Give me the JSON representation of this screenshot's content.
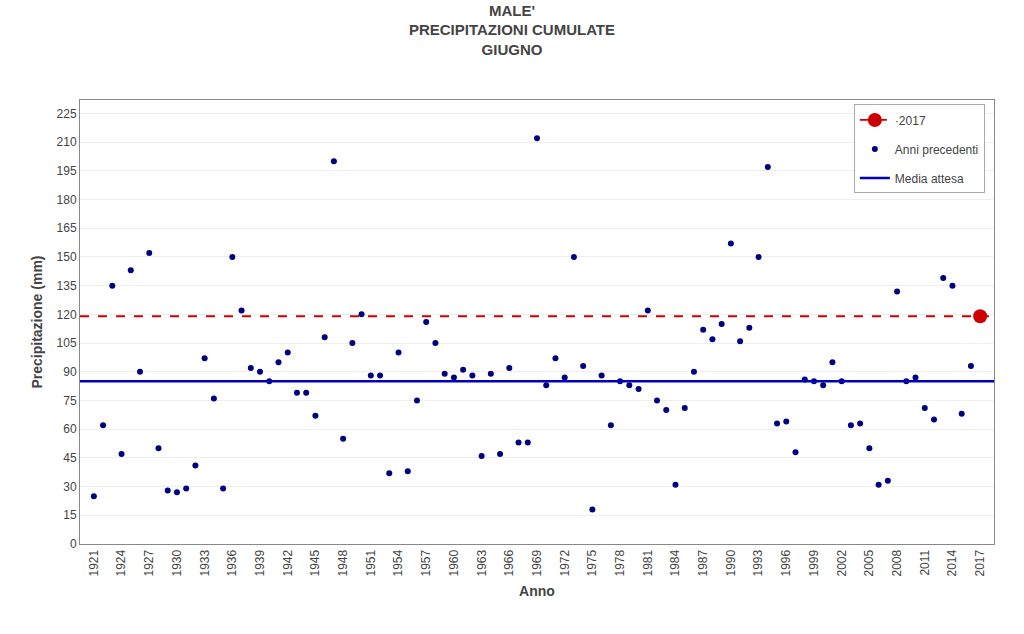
{
  "chart_data": {
    "type": "scatter",
    "title": "MALE'\nPRECIPITAZIONI CUMULATE\nGIUGNO",
    "xlabel": "Anno",
    "ylabel": "Precipitazione (mm)",
    "series": [
      {
        "name": "·2017",
        "type": "scatter",
        "color": "#cc0000",
        "marker": "circle",
        "line_style": "dashed",
        "x": [
          2017
        ],
        "values": [
          119
        ]
      },
      {
        "name": "Anni precedenti",
        "type": "scatter",
        "color": "#000080",
        "marker": "circle",
        "x": [
          1921,
          1922,
          1923,
          1924,
          1925,
          1926,
          1927,
          1928,
          1929,
          1930,
          1931,
          1932,
          1933,
          1934,
          1935,
          1936,
          1937,
          1938,
          1939,
          1940,
          1941,
          1942,
          1943,
          1944,
          1945,
          1946,
          1947,
          1948,
          1949,
          1950,
          1951,
          1952,
          1953,
          1954,
          1955,
          1956,
          1957,
          1958,
          1959,
          1960,
          1961,
          1962,
          1963,
          1964,
          1965,
          1966,
          1967,
          1968,
          1969,
          1970,
          1971,
          1972,
          1973,
          1974,
          1975,
          1976,
          1977,
          1978,
          1979,
          1980,
          1981,
          1982,
          1983,
          1984,
          1985,
          1986,
          1987,
          1988,
          1989,
          1990,
          1991,
          1992,
          1993,
          1994,
          1995,
          1996,
          1997,
          1998,
          1999,
          2000,
          2001,
          2002,
          2003,
          2004,
          2005,
          2006,
          2007,
          2008,
          2009,
          2010,
          2011,
          2012,
          2013,
          2014,
          2015,
          2016
        ],
        "values": [
          25,
          62,
          135,
          47,
          143,
          90,
          152,
          50,
          28,
          27,
          29,
          41,
          97,
          76,
          29,
          150,
          122,
          92,
          90,
          85,
          95,
          100,
          79,
          79,
          67,
          108,
          200,
          55,
          105,
          120,
          88,
          88,
          37,
          100,
          38,
          75,
          116,
          105,
          89,
          87,
          91,
          88,
          46,
          89,
          47,
          92,
          53,
          53,
          212,
          83,
          97,
          87,
          150,
          93,
          18,
          88,
          62,
          85,
          83,
          81,
          122,
          75,
          70,
          31,
          71,
          90,
          112,
          107,
          115,
          157,
          106,
          113,
          150,
          197,
          63,
          64,
          48,
          86,
          85,
          83,
          95,
          85,
          62,
          63,
          50,
          31,
          33,
          132,
          85,
          87,
          71,
          65,
          139,
          135,
          68,
          93
        ]
      },
      {
        "name": "Media attesa",
        "type": "hline",
        "color": "#0000bb",
        "line_style": "solid",
        "values": [
          85
        ]
      }
    ],
    "xlim": [
      1919.5,
      2018.5
    ],
    "ylim": [
      0,
      232
    ],
    "xticks": [
      1921,
      1924,
      1927,
      1930,
      1933,
      1936,
      1939,
      1942,
      1945,
      1948,
      1951,
      1954,
      1957,
      1960,
      1963,
      1966,
      1969,
      1972,
      1975,
      1978,
      1981,
      1984,
      1987,
      1990,
      1993,
      1996,
      1999,
      2002,
      2005,
      2008,
      2011,
      2014,
      2017
    ],
    "yticks": [
      0,
      15,
      30,
      45,
      60,
      75,
      90,
      105,
      120,
      135,
      150,
      165,
      180,
      195,
      210,
      225
    ],
    "grid": "y",
    "legend": "upper right"
  }
}
